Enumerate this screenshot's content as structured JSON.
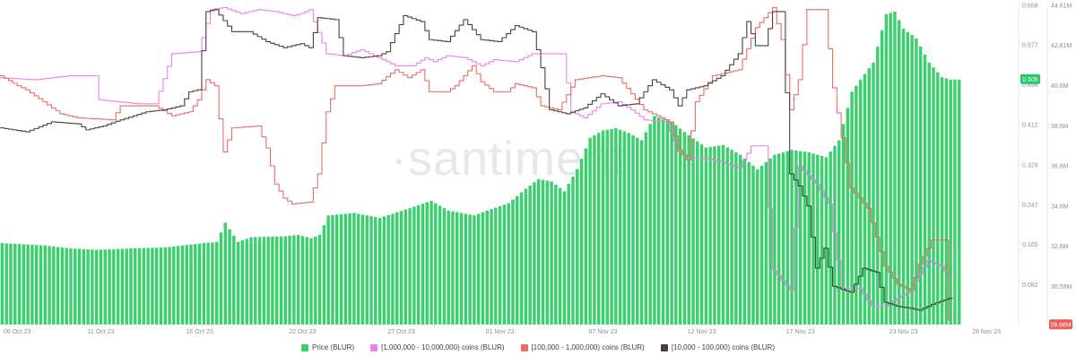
{
  "chart_data": {
    "type": "bar",
    "watermark": "·santiment",
    "x_tick_labels": [
      "06 Oct 23",
      "11 Oct 23",
      "16 Oct 23",
      "22 Oct 23",
      "27 Oct 23",
      "01 Nov 23",
      "07 Nov 23",
      "12 Nov 23",
      "17 Nov 23",
      "23 Nov 23",
      "28 Nov 23"
    ],
    "x_tick_positions": [
      0,
      23,
      46,
      70,
      93,
      116,
      140,
      163,
      186,
      210,
      233
    ],
    "n_points": 234,
    "price_axis": {
      "ticks": [
        "0.082",
        "0.165",
        "0.247",
        "0.329",
        "0.412",
        "0.494",
        "0.577",
        "0.658"
      ],
      "range": [
        0,
        0.658
      ],
      "current": "0.505"
    },
    "holdings_axis": {
      "ticks": [
        "28.69M",
        "30.59M",
        "32.6M",
        "34.6M",
        "36.6M",
        "38.6M",
        "40.6M",
        "42.61M",
        "44.61M"
      ],
      "range": [
        28.69,
        44.61
      ],
      "current": "28.68M"
    },
    "colors": {
      "price": "#3ccf6e",
      "band_1m_10m": "#ef7ef2",
      "band_100k_1m": "#ee6a62",
      "band_10k_100k": "#4a3f3a",
      "price_badge": "#26c76a",
      "red_badge": "#ee5a55"
    },
    "series": [
      {
        "name": "Price (BLUR)",
        "kind": "bar",
        "axis": "price",
        "knots": [
          [
            0,
            0.168
          ],
          [
            10,
            0.163
          ],
          [
            16,
            0.157
          ],
          [
            22,
            0.154
          ],
          [
            30,
            0.157
          ],
          [
            38,
            0.159
          ],
          [
            47,
            0.168
          ],
          [
            50,
            0.17
          ],
          [
            52,
            0.21
          ],
          [
            55,
            0.17
          ],
          [
            58,
            0.18
          ],
          [
            66,
            0.182
          ],
          [
            69,
            0.185
          ],
          [
            72,
            0.178
          ],
          [
            74,
            0.185
          ],
          [
            76,
            0.225
          ],
          [
            82,
            0.23
          ],
          [
            88,
            0.22
          ],
          [
            95,
            0.24
          ],
          [
            100,
            0.255
          ],
          [
            104,
            0.235
          ],
          [
            110,
            0.225
          ],
          [
            114,
            0.238
          ],
          [
            118,
            0.25
          ],
          [
            122,
            0.28
          ],
          [
            125,
            0.3
          ],
          [
            128,
            0.295
          ],
          [
            131,
            0.275
          ],
          [
            134,
            0.32
          ],
          [
            137,
            0.385
          ],
          [
            140,
            0.4
          ],
          [
            143,
            0.405
          ],
          [
            146,
            0.395
          ],
          [
            149,
            0.38
          ],
          [
            152,
            0.43
          ],
          [
            156,
            0.418
          ],
          [
            160,
            0.39
          ],
          [
            164,
            0.365
          ],
          [
            168,
            0.37
          ],
          [
            172,
            0.35
          ],
          [
            176,
            0.32
          ],
          [
            180,
            0.35
          ],
          [
            184,
            0.36
          ],
          [
            188,
            0.355
          ],
          [
            192,
            0.345
          ],
          [
            195,
            0.38
          ],
          [
            198,
            0.48
          ],
          [
            200,
            0.505
          ],
          [
            203,
            0.54
          ],
          [
            206,
            0.64
          ],
          [
            208,
            0.645
          ],
          [
            210,
            0.61
          ],
          [
            213,
            0.59
          ],
          [
            216,
            0.54
          ],
          [
            219,
            0.51
          ],
          [
            221,
            0.505
          ],
          [
            223,
            0.505
          ]
        ]
      },
      {
        "name": "[1,000,000 - 10,000,000) coins (BLUR)",
        "kind": "line",
        "axis": "holdings",
        "knots": [
          [
            0,
            41.0
          ],
          [
            8,
            40.9
          ],
          [
            12,
            41.0
          ],
          [
            16,
            41.1
          ],
          [
            22,
            41.1
          ],
          [
            23,
            39.9
          ],
          [
            32,
            39.7
          ],
          [
            36,
            39.7
          ],
          [
            40,
            42.2
          ],
          [
            46,
            42.3
          ],
          [
            49,
            44.4
          ],
          [
            52,
            44.5
          ],
          [
            56,
            44.2
          ],
          [
            60,
            44.4
          ],
          [
            64,
            44.3
          ],
          [
            68,
            44.1
          ],
          [
            70,
            44.2
          ],
          [
            72,
            44.4
          ],
          [
            73,
            43.8
          ],
          [
            76,
            42.2
          ],
          [
            80,
            42.1
          ],
          [
            84,
            42.4
          ],
          [
            88,
            42.0
          ],
          [
            92,
            41.6
          ],
          [
            96,
            41.6
          ],
          [
            99,
            42.0
          ],
          [
            101,
            41.8
          ],
          [
            104,
            42.1
          ],
          [
            108,
            42.0
          ],
          [
            112,
            41.6
          ],
          [
            115,
            41.9
          ],
          [
            120,
            41.8
          ],
          [
            124,
            42.2
          ],
          [
            128,
            42.2
          ],
          [
            131,
            42.2
          ],
          [
            133,
            39.3
          ],
          [
            136,
            39.0
          ],
          [
            140,
            39.7
          ],
          [
            144,
            39.8
          ],
          [
            147,
            39.4
          ],
          [
            150,
            38.9
          ],
          [
            155,
            38.8
          ],
          [
            158,
            37.3
          ],
          [
            160,
            37.0
          ],
          [
            164,
            37.0
          ],
          [
            168,
            36.8
          ],
          [
            172,
            36.5
          ],
          [
            175,
            37.6
          ],
          [
            178,
            37.6
          ],
          [
            180,
            31.4
          ],
          [
            184,
            30.4
          ],
          [
            186,
            36.6
          ],
          [
            190,
            35.7
          ],
          [
            193,
            34.7
          ],
          [
            196,
            30.5
          ],
          [
            200,
            30.5
          ],
          [
            203,
            29.6
          ],
          [
            206,
            29.6
          ],
          [
            209,
            30.0
          ],
          [
            212,
            30.4
          ],
          [
            214,
            31.2
          ],
          [
            216,
            31.9
          ],
          [
            219,
            31.6
          ],
          [
            221,
            31.1
          ]
        ]
      },
      {
        "name": "[100,000  - 1,000,000) coins (BLUR)",
        "kind": "line",
        "axis": "holdings",
        "knots": [
          [
            0,
            41.1
          ],
          [
            4,
            40.6
          ],
          [
            6,
            40.4
          ],
          [
            10,
            39.8
          ],
          [
            14,
            39.2
          ],
          [
            18,
            39.0
          ],
          [
            26,
            38.9
          ],
          [
            28,
            39.6
          ],
          [
            36,
            39.6
          ],
          [
            40,
            39.1
          ],
          [
            44,
            39.3
          ],
          [
            46,
            39.9
          ],
          [
            48,
            40.9
          ],
          [
            50,
            40.6
          ],
          [
            52,
            37.3
          ],
          [
            54,
            38.5
          ],
          [
            60,
            38.6
          ],
          [
            62,
            37.5
          ],
          [
            64,
            35.7
          ],
          [
            66,
            35.0
          ],
          [
            68,
            34.7
          ],
          [
            72,
            34.8
          ],
          [
            74,
            36.2
          ],
          [
            76,
            39.3
          ],
          [
            78,
            40.6
          ],
          [
            84,
            40.6
          ],
          [
            88,
            40.7
          ],
          [
            92,
            41.4
          ],
          [
            95,
            41.0
          ],
          [
            98,
            41.4
          ],
          [
            100,
            40.3
          ],
          [
            104,
            40.3
          ],
          [
            106,
            40.6
          ],
          [
            110,
            41.6
          ],
          [
            112,
            40.8
          ],
          [
            115,
            40.3
          ],
          [
            118,
            40.3
          ],
          [
            120,
            40.7
          ],
          [
            124,
            40.5
          ],
          [
            126,
            39.6
          ],
          [
            130,
            39.4
          ],
          [
            134,
            40.9
          ],
          [
            140,
            41.1
          ],
          [
            144,
            41.0
          ],
          [
            150,
            39.4
          ],
          [
            156,
            38.8
          ],
          [
            158,
            37.4
          ],
          [
            160,
            36.9
          ],
          [
            162,
            39.8
          ],
          [
            166,
            41.1
          ],
          [
            172,
            41.4
          ],
          [
            176,
            43.5
          ],
          [
            180,
            44.5
          ],
          [
            182,
            42.9
          ],
          [
            184,
            39.4
          ],
          [
            186,
            40.9
          ],
          [
            188,
            44.4
          ],
          [
            192,
            44.4
          ],
          [
            194,
            40.5
          ],
          [
            198,
            35.5
          ],
          [
            202,
            34.5
          ],
          [
            206,
            31.6
          ],
          [
            209,
            30.7
          ],
          [
            212,
            30.4
          ],
          [
            214,
            31.7
          ],
          [
            217,
            32.9
          ],
          [
            219,
            32.9
          ],
          [
            220,
            32.9
          ],
          [
            221,
            28.9
          ]
        ]
      },
      {
        "name": "[10,000 - 100,000) coins (BLUR)",
        "kind": "line",
        "axis": "holdings",
        "knots": [
          [
            0,
            38.5
          ],
          [
            6,
            38.3
          ],
          [
            12,
            38.8
          ],
          [
            18,
            38.7
          ],
          [
            20,
            38.4
          ],
          [
            24,
            38.6
          ],
          [
            28,
            38.9
          ],
          [
            34,
            39.3
          ],
          [
            38,
            39.4
          ],
          [
            42,
            39.6
          ],
          [
            44,
            40.3
          ],
          [
            46,
            40.4
          ],
          [
            48,
            44.3
          ],
          [
            50,
            44.4
          ],
          [
            54,
            43.3
          ],
          [
            58,
            43.3
          ],
          [
            62,
            42.8
          ],
          [
            66,
            42.5
          ],
          [
            70,
            42.7
          ],
          [
            72,
            42.5
          ],
          [
            74,
            44.0
          ],
          [
            78,
            43.9
          ],
          [
            80,
            42.1
          ],
          [
            84,
            42.0
          ],
          [
            88,
            42.1
          ],
          [
            90,
            42.3
          ],
          [
            94,
            44.1
          ],
          [
            98,
            43.8
          ],
          [
            100,
            42.9
          ],
          [
            104,
            42.8
          ],
          [
            108,
            43.9
          ],
          [
            112,
            42.9
          ],
          [
            116,
            42.8
          ],
          [
            120,
            43.6
          ],
          [
            124,
            43.3
          ],
          [
            126,
            41.5
          ],
          [
            128,
            39.4
          ],
          [
            132,
            39.2
          ],
          [
            136,
            39.5
          ],
          [
            140,
            40.2
          ],
          [
            144,
            39.6
          ],
          [
            148,
            39.7
          ],
          [
            152,
            40.9
          ],
          [
            156,
            40.4
          ],
          [
            158,
            39.6
          ],
          [
            160,
            40.4
          ],
          [
            164,
            40.6
          ],
          [
            168,
            41.1
          ],
          [
            172,
            42.2
          ],
          [
            174,
            43.8
          ],
          [
            176,
            42.6
          ],
          [
            178,
            42.6
          ],
          [
            180,
            44.3
          ],
          [
            182,
            44.3
          ],
          [
            184,
            36.2
          ],
          [
            186,
            35.6
          ],
          [
            188,
            34.6
          ],
          [
            190,
            31.5
          ],
          [
            192,
            32.5
          ],
          [
            194,
            30.6
          ],
          [
            198,
            30.3
          ],
          [
            201,
            31.5
          ],
          [
            204,
            31.3
          ],
          [
            206,
            29.8
          ],
          [
            209,
            29.6
          ],
          [
            212,
            29.5
          ],
          [
            214,
            29.4
          ],
          [
            217,
            29.7
          ],
          [
            221,
            30.0
          ]
        ]
      }
    ]
  },
  "legend": [
    {
      "label": "Price (BLUR)",
      "color": "#3ccf6e"
    },
    {
      "label": "[1,000,000 - 10,000,000) coins (BLUR)",
      "color": "#ef7ef2"
    },
    {
      "label": "[100,000  - 1,000,000) coins (BLUR)",
      "color": "#ee6a62"
    },
    {
      "label": "[10,000 - 100,000) coins (BLUR)",
      "color": "#4a3f3a"
    }
  ]
}
